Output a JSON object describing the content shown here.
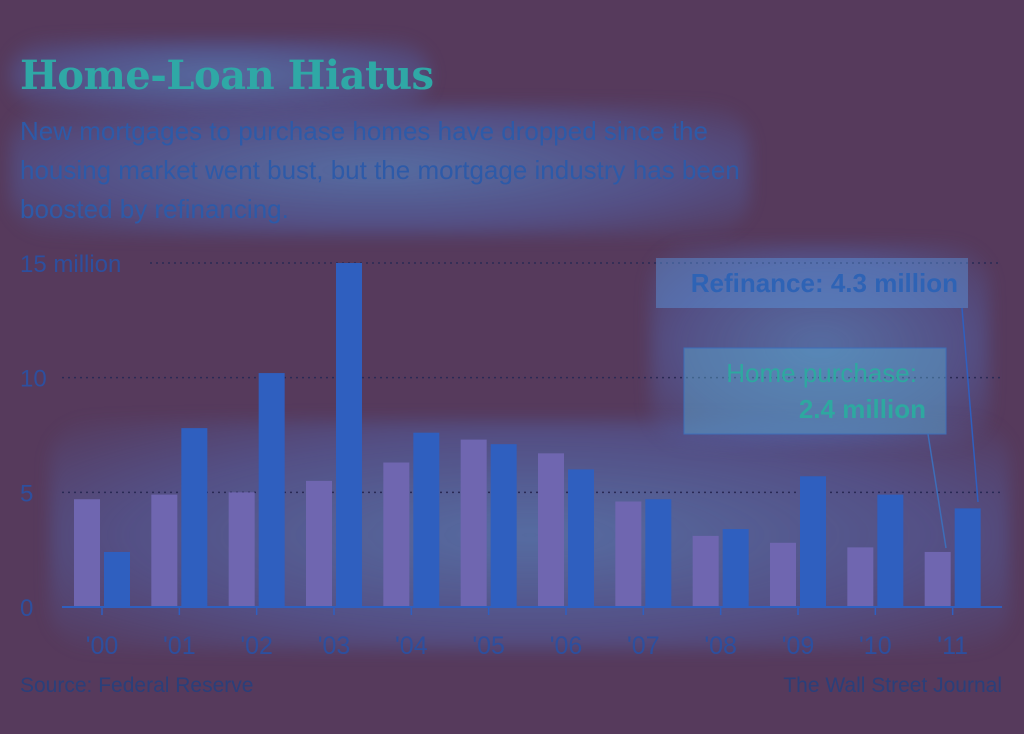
{
  "chart_data": {
    "type": "bar",
    "title": "Home-Loan Hiatus",
    "subtitle": "New mortgages to purchase homes have dropped since the housing market went bust, but the mortgage industry has been boosted by refinancing.",
    "categories": [
      "'00",
      "'01",
      "'02",
      "'03",
      "'04",
      "'05",
      "'06",
      "'07",
      "'08",
      "'09",
      "'10",
      "'11"
    ],
    "series": [
      {
        "name": "Home purchase",
        "values": [
          4.7,
          4.9,
          5.0,
          5.5,
          6.3,
          7.3,
          6.7,
          4.6,
          3.1,
          2.8,
          2.6,
          2.4
        ],
        "color": "#6f66b0"
      },
      {
        "name": "Refinance",
        "values": [
          2.4,
          7.8,
          10.2,
          15.0,
          7.6,
          7.1,
          6.0,
          4.7,
          3.4,
          5.7,
          4.9,
          4.3
        ],
        "color": "#2f5fbf"
      }
    ],
    "ylim": [
      0,
      15
    ],
    "yticks": [
      0,
      5,
      10,
      15
    ],
    "ytick_labels": [
      "0",
      "5",
      "10",
      "15 million"
    ],
    "grid": true,
    "annotations": {
      "refinance": "Refinance: 4.3 million",
      "purchase_line1": "Home purchase:",
      "purchase_line2": "2.4 million"
    },
    "source": "Source: Federal Reserve",
    "credit": "The Wall Street Journal"
  }
}
